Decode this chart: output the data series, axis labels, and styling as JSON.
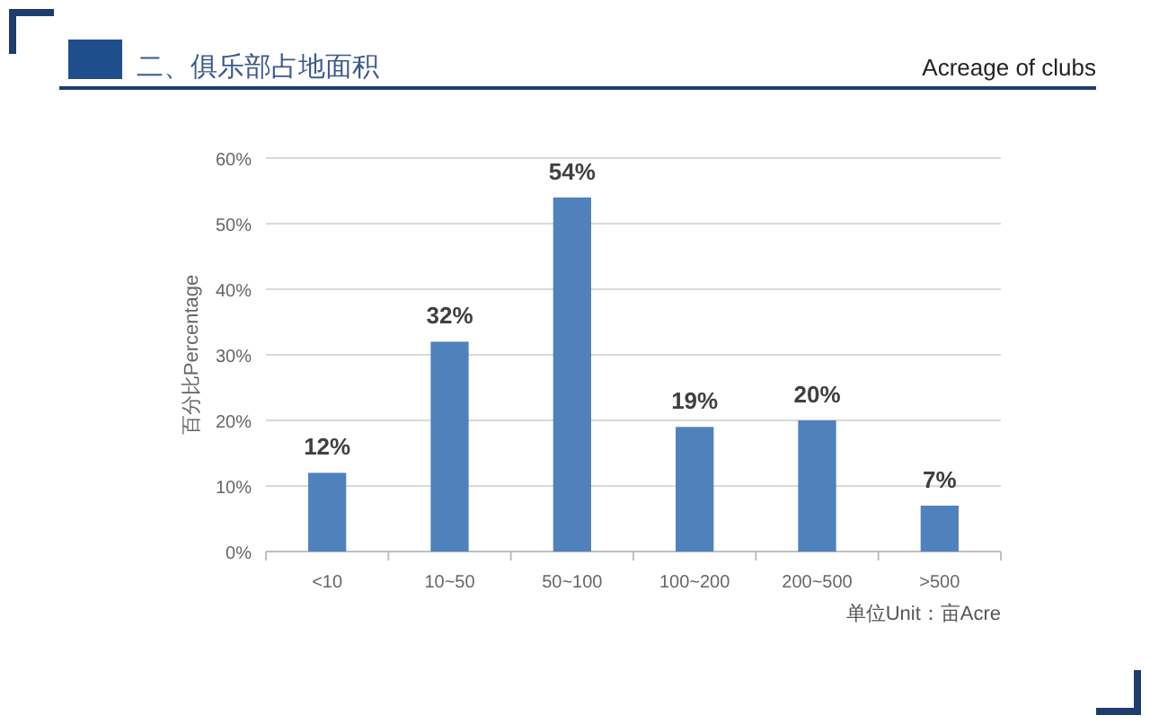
{
  "chart_data": {
    "type": "bar",
    "title": "二、俱乐部占地面积",
    "subtitle": "Acreage of clubs",
    "ylabel": "百分比Percentage",
    "categories": [
      "<10",
      "10~50",
      "50~100",
      "100~200",
      "200~500",
      ">500"
    ],
    "values": [
      12,
      32,
      54,
      19,
      20,
      7
    ],
    "color": "#4f81bd",
    "value_labels": [
      "12%",
      "32%",
      "54%",
      "19%",
      "20%",
      "7%"
    ],
    "ylim": [
      0,
      60
    ],
    "yticks": [
      {
        "value": 0,
        "label": "0%"
      },
      {
        "value": 10,
        "label": "10%"
      },
      {
        "value": 20,
        "label": "20%"
      },
      {
        "value": 30,
        "label": "30%"
      },
      {
        "value": 40,
        "label": "40%"
      },
      {
        "value": 50,
        "label": "50%"
      },
      {
        "value": 60,
        "label": "60%"
      }
    ],
    "grid": "y",
    "annotations": [
      "单位Unit：亩Acre"
    ]
  }
}
